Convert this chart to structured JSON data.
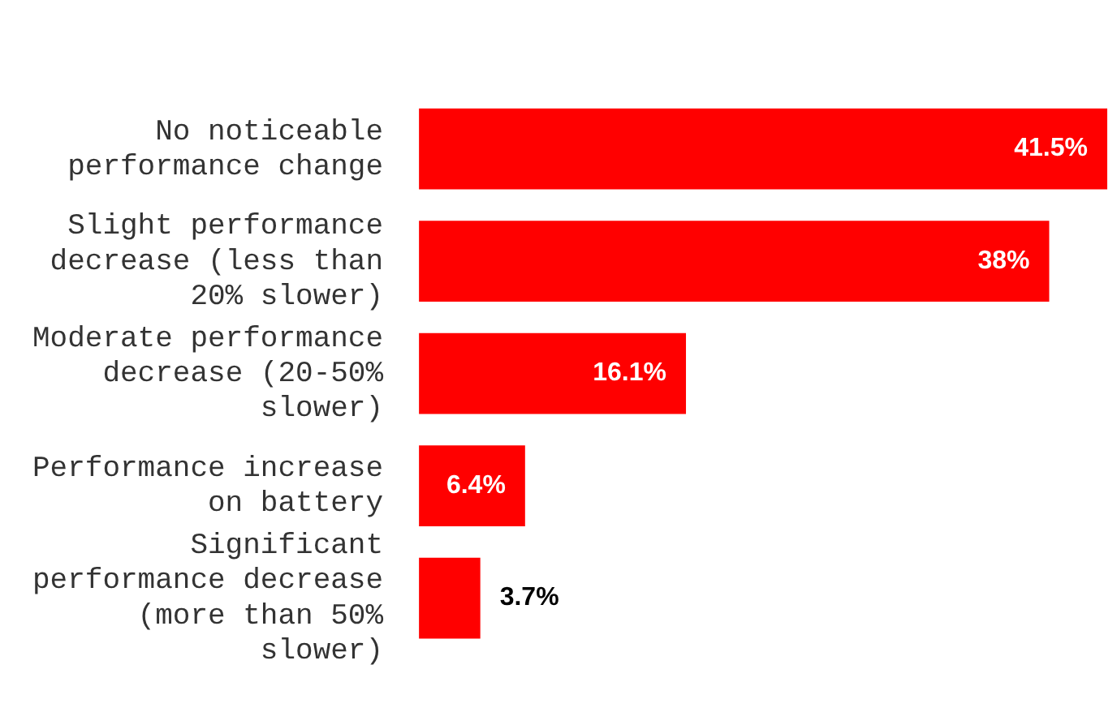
{
  "chart_data": {
    "type": "bar",
    "orientation": "horizontal",
    "categories": [
      "No noticeable performance change",
      "Slight performance decrease (less than 20% slower)",
      "Moderate performance decrease (20-50% slower)",
      "Performance increase on battery",
      "Significant performance decrease (more than 50% slower)"
    ],
    "values": [
      41.5,
      38,
      16.1,
      6.4,
      3.7
    ],
    "value_labels": [
      "41.5%",
      "38%",
      "16.1%",
      "6.4%",
      "3.7%"
    ],
    "color": "#ff0000"
  }
}
